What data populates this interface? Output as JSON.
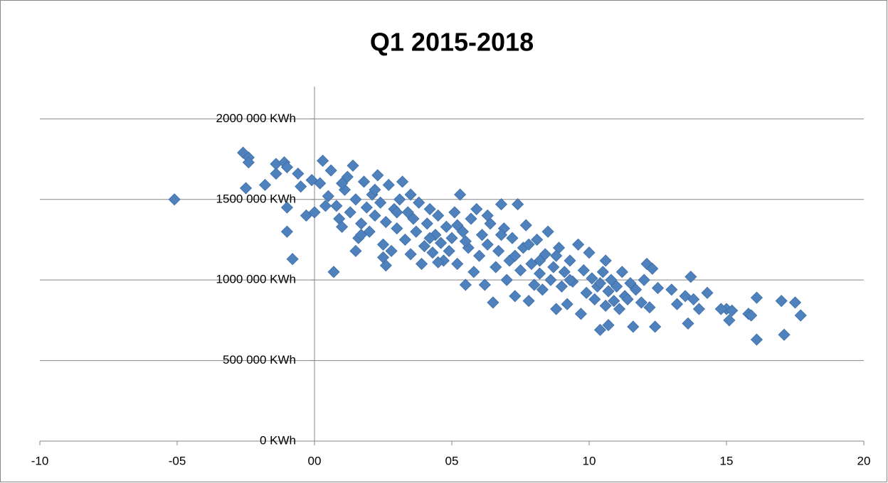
{
  "chart_data": {
    "type": "scatter",
    "title": "Q1 2015-2018",
    "color": "#4f81bd",
    "grid": true,
    "x": [
      -5.1,
      -2.6,
      -2.4,
      -2.4,
      -2.5,
      -1.8,
      -1.4,
      -1.4,
      -1.1,
      -1.0,
      -1.0,
      -1.0,
      -0.8,
      -0.6,
      -0.5,
      -0.3,
      0,
      -0.1,
      0.3,
      0.7,
      16.1,
      17.1,
      17.7,
      17.5,
      17.0,
      16.1,
      15.8,
      15.0,
      15.1,
      14.3,
      13.7,
      13.6,
      11.6,
      12.4,
      12.1,
      12.3,
      10.4,
      10.7,
      10.6,
      7.4,
      6.8,
      5.3,
      6.5,
      5.5,
      2.6,
      1.5,
      1.4,
      0.2,
      0.5,
      0.6,
      0.8,
      0.9,
      1.0,
      1.1,
      1.2,
      1.3,
      1.5,
      1.6,
      1.7,
      1.8,
      1.9,
      2.0,
      2.1,
      2.2,
      2.3,
      2.4,
      2.5,
      2.6,
      2.7,
      2.8,
      2.9,
      3.0,
      3.1,
      3.2,
      3.3,
      3.4,
      3.5,
      3.6,
      3.7,
      3.8,
      3.9,
      4.0,
      4.1,
      4.2,
      4.3,
      4.4,
      4.5,
      4.6,
      4.7,
      4.8,
      4.9,
      5.0,
      5.1,
      5.2,
      5.4,
      5.6,
      5.7,
      5.8,
      5.9,
      6.0,
      6.1,
      6.2,
      6.3,
      6.4,
      6.6,
      6.7,
      6.9,
      7.0,
      7.1,
      7.2,
      7.3,
      7.5,
      7.6,
      7.7,
      7.8,
      7.9,
      8.0,
      8.1,
      8.2,
      8.3,
      8.4,
      8.5,
      8.6,
      8.7,
      8.8,
      8.9,
      9.0,
      9.1,
      9.2,
      9.3,
      9.4,
      9.6,
      9.7,
      9.8,
      9.9,
      10.0,
      10.1,
      10.2,
      10.3,
      10.5,
      10.6,
      10.7,
      10.8,
      10.9,
      11.0,
      11.1,
      11.2,
      11.3,
      11.5,
      11.7,
      11.9,
      12.0,
      12.2,
      12.5,
      13.0,
      13.2,
      13.5,
      13.8,
      14.0,
      14.8,
      15.2,
      15.9,
      0.4,
      1.0,
      1.7,
      2.2,
      2.5,
      3.0,
      3.5,
      4.2,
      4.5,
      5.2,
      5.5,
      6.3,
      6.8,
      7.3,
      7.8,
      8.2,
      8.8,
      9.3,
      10.4,
      11.4
    ],
    "values": [
      1500000,
      1790000,
      1760000,
      1730000,
      1570000,
      1590000,
      1720000,
      1660000,
      1730000,
      1700000,
      1450000,
      1300000,
      1130000,
      1660000,
      1580000,
      1400000,
      1420000,
      1620000,
      1740000,
      1050000,
      630000,
      660000,
      780000,
      860000,
      870000,
      890000,
      790000,
      820000,
      750000,
      920000,
      1020000,
      730000,
      710000,
      710000,
      1100000,
      1070000,
      690000,
      720000,
      1120000,
      1470000,
      1470000,
      1530000,
      860000,
      970000,
      1090000,
      1180000,
      1710000,
      1600000,
      1520000,
      1680000,
      1460000,
      1380000,
      1330000,
      1560000,
      1640000,
      1420000,
      1500000,
      1260000,
      1350000,
      1610000,
      1450000,
      1300000,
      1530000,
      1400000,
      1650000,
      1480000,
      1220000,
      1360000,
      1590000,
      1180000,
      1440000,
      1320000,
      1500000,
      1610000,
      1250000,
      1420000,
      1160000,
      1380000,
      1300000,
      1480000,
      1100000,
      1210000,
      1350000,
      1440000,
      1170000,
      1280000,
      1400000,
      1230000,
      1120000,
      1330000,
      1180000,
      1260000,
      1420000,
      1100000,
      1300000,
      1200000,
      1380000,
      1050000,
      1440000,
      1150000,
      1280000,
      970000,
      1220000,
      1350000,
      1080000,
      1180000,
      1320000,
      1000000,
      1120000,
      1260000,
      900000,
      1060000,
      1200000,
      1340000,
      870000,
      1100000,
      970000,
      1250000,
      1040000,
      940000,
      1160000,
      1300000,
      1000000,
      1080000,
      820000,
      1200000,
      960000,
      1050000,
      850000,
      1120000,
      990000,
      1220000,
      790000,
      1060000,
      920000,
      1170000,
      1010000,
      880000,
      960000,
      1050000,
      840000,
      930000,
      1000000,
      870000,
      960000,
      820000,
      1050000,
      900000,
      980000,
      940000,
      860000,
      1000000,
      830000,
      950000,
      940000,
      850000,
      900000,
      880000,
      820000,
      820000,
      810000,
      780000,
      1460000,
      1600000,
      1280000,
      1560000,
      1140000,
      1420000,
      1530000,
      1260000,
      1110000,
      1340000,
      1240000,
      1400000,
      1280000,
      1150000,
      1220000,
      1120000,
      1150000,
      1000000,
      980000,
      880000
    ],
    "xlim": [
      -10,
      20
    ],
    "xticks": [
      -10,
      {
        "value": -5,
        "label": "-05"
      },
      {
        "value": 0,
        "label": "00"
      },
      {
        "value": 5,
        "label": "05"
      },
      10,
      15,
      20
    ],
    "ylim": [
      0,
      2200000
    ],
    "yticks": [
      {
        "value": 0,
        "label": "0 KWh"
      },
      {
        "value": 500000,
        "label": "500 000 KWh"
      },
      {
        "value": 1000000,
        "label": "1000 000 KWh"
      },
      {
        "value": 1500000,
        "label": "1500 000 KWh"
      },
      {
        "value": 2000000,
        "label": "2000 000 KWh"
      }
    ]
  }
}
